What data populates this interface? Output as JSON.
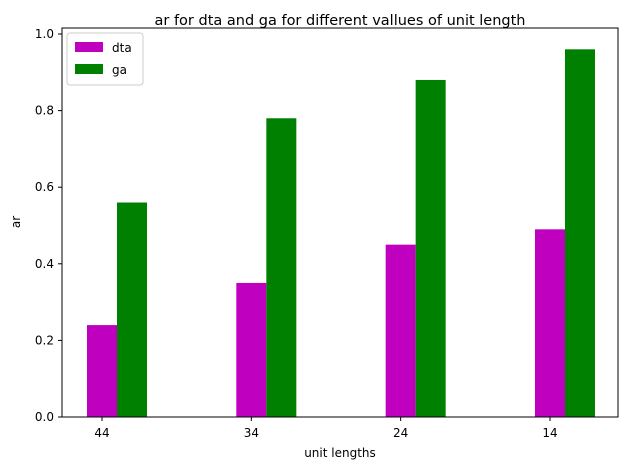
{
  "chart_data": {
    "type": "bar",
    "title": "ar for dta and ga for different vallues of unit length",
    "xlabel": "unit lengths",
    "ylabel": "ar",
    "categories": [
      "44",
      "34",
      "24",
      "14"
    ],
    "series": [
      {
        "name": "dta",
        "values": [
          0.24,
          0.35,
          0.45,
          0.49
        ],
        "color": "#bf00bf"
      },
      {
        "name": "ga",
        "values": [
          0.56,
          0.78,
          0.88,
          0.96
        ],
        "color": "#008000"
      }
    ],
    "ylim": [
      0,
      1.0
    ],
    "yticks": [
      "0.0",
      "0.2",
      "0.4",
      "0.6",
      "0.8",
      "1.0"
    ],
    "grid": false,
    "legend_position": "top-left"
  }
}
